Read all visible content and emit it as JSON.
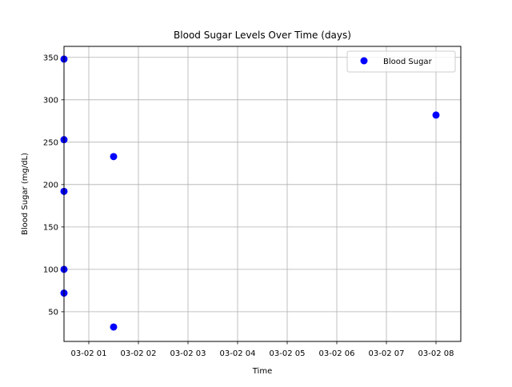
{
  "chart_data": {
    "type": "scatter",
    "title": "Blood Sugar Levels Over Time (days)",
    "xlabel": "Time",
    "ylabel": "Blood Sugar (mg/dL)",
    "x_tick_labels": [
      "03-02 01",
      "03-02 02",
      "03-02 03",
      "03-02 04",
      "03-02 05",
      "03-02 06",
      "03-02 07",
      "03-02 08"
    ],
    "y_ticks": [
      50,
      100,
      150,
      200,
      250,
      300,
      350
    ],
    "ylim": [
      15,
      363
    ],
    "xlim": [
      "03-02 00:30",
      "03-02 08:30"
    ],
    "grid": true,
    "legend_position": "upper right",
    "series": [
      {
        "name": "Blood Sugar",
        "color": "#0000ff",
        "marker": "circle",
        "points": [
          {
            "x": "03-02 00:30",
            "y": 348
          },
          {
            "x": "03-02 00:30",
            "y": 253
          },
          {
            "x": "03-02 00:30",
            "y": 192
          },
          {
            "x": "03-02 00:30",
            "y": 100
          },
          {
            "x": "03-02 00:30",
            "y": 72
          },
          {
            "x": "03-02 01:30",
            "y": 233
          },
          {
            "x": "03-02 01:30",
            "y": 32
          },
          {
            "x": "03-02 08:00",
            "y": 282
          }
        ]
      }
    ]
  },
  "colors": {
    "marker": "#0000ff",
    "grid": "#b0b0b0",
    "axes": "#000000",
    "background": "#ffffff"
  }
}
